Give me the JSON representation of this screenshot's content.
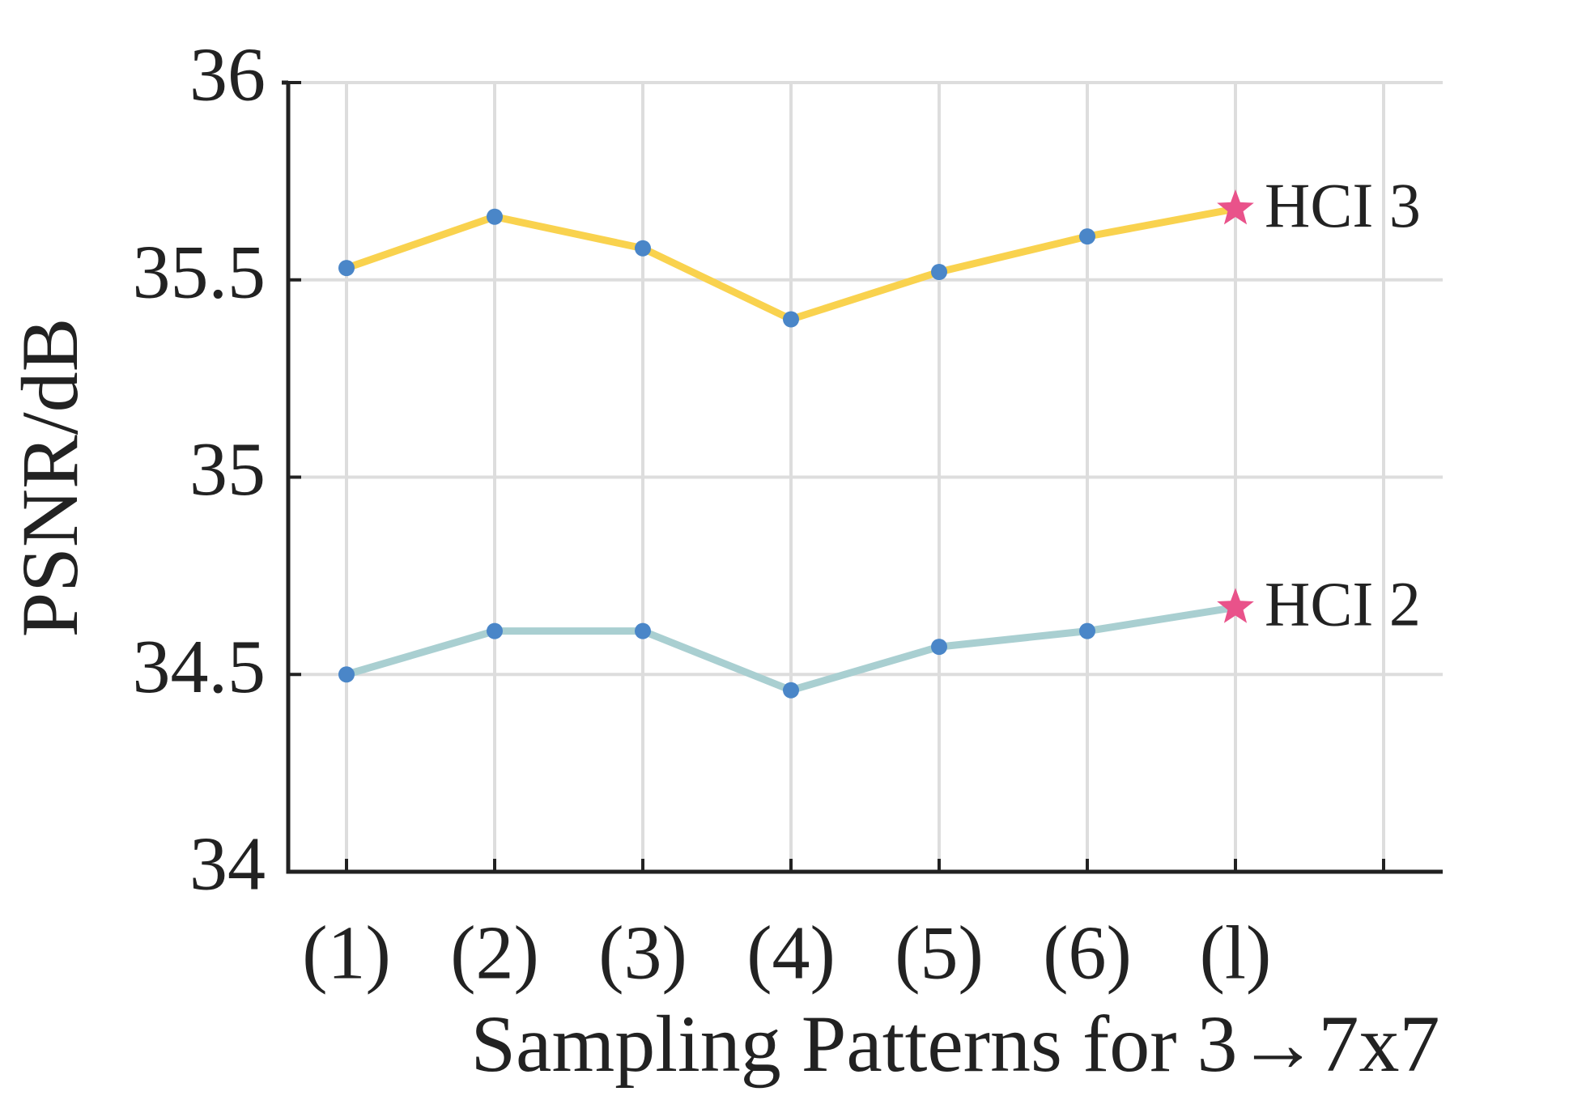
{
  "chart_data": {
    "type": "line",
    "xlabel": "Sampling Patterns for 3→7x7",
    "ylabel": "PSNR/dB",
    "categories": [
      "(1)",
      "(2)",
      "(3)",
      "(4)",
      "(5)",
      "(6)",
      "(l)",
      null
    ],
    "series": [
      {
        "name": "HCI 3",
        "color": "#f9d24e",
        "values": [
          35.53,
          35.66,
          35.58,
          35.4,
          35.52,
          35.61,
          35.68,
          null
        ]
      },
      {
        "name": "HCI 2",
        "color": "#a9cfd1",
        "values": [
          34.5,
          34.61,
          34.61,
          34.46,
          34.57,
          34.61,
          34.67,
          null
        ]
      }
    ],
    "marker_color": "#4a86c8",
    "highlight_color": "#e9528a",
    "ylim": [
      34,
      36
    ],
    "yticks": [
      34,
      34.5,
      35,
      35.5,
      36
    ],
    "grid": true
  }
}
